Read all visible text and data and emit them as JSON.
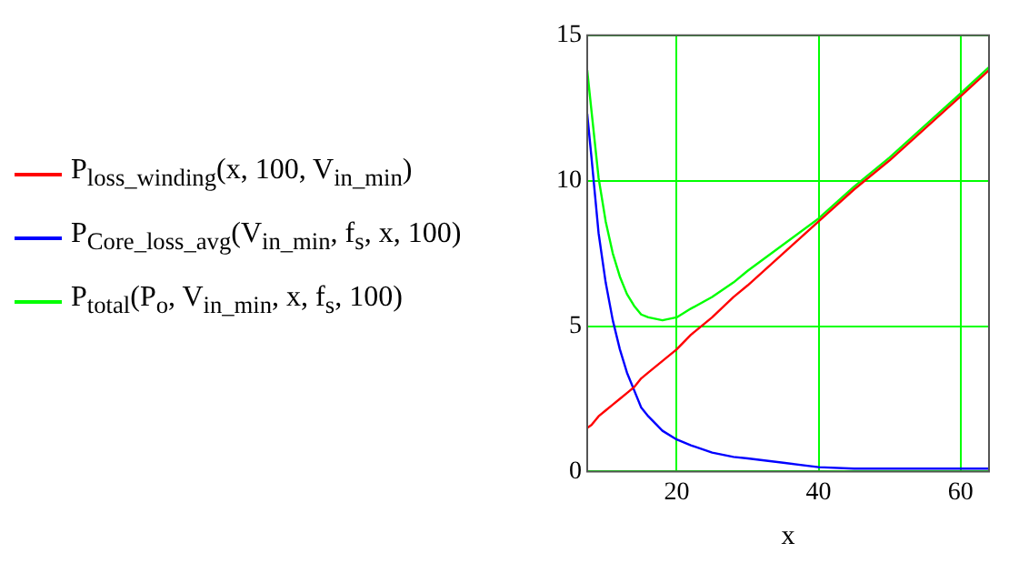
{
  "chart_data": {
    "type": "line",
    "xlabel": "x",
    "x": [
      7.4,
      8,
      9,
      10,
      11,
      12,
      13,
      14,
      15,
      16,
      18,
      20,
      22,
      25,
      28,
      30,
      35,
      40,
      45,
      50,
      55,
      60,
      64
    ],
    "series": [
      {
        "name": "P$_{loss_winding}$(x, 100, V$_{in_min}$)",
        "color": "#ff0000",
        "values": [
          1.5,
          1.6,
          1.9,
          2.1,
          2.3,
          2.5,
          2.7,
          2.9,
          3.2,
          3.4,
          3.8,
          4.2,
          4.7,
          5.3,
          6.0,
          6.4,
          7.5,
          8.6,
          9.7,
          10.7,
          11.8,
          12.9,
          13.8
        ]
      },
      {
        "name": "P$_{Core_loss_avg}$(V$_{in_min}$, f$_{s}$, x, 100)",
        "color": "#0000ff",
        "values": [
          12.3,
          10.8,
          8.2,
          6.5,
          5.2,
          4.2,
          3.4,
          2.8,
          2.2,
          1.9,
          1.4,
          1.1,
          0.9,
          0.65,
          0.5,
          0.45,
          0.3,
          0.15,
          0.1,
          0.1,
          0.1,
          0.1,
          0.1
        ]
      },
      {
        "name": "P$_{total}$(P$_{o}$, V$_{in_min}$, x, f$_{s}$, 100)",
        "color": "#00ff00",
        "values": [
          13.8,
          12.4,
          10.1,
          8.6,
          7.5,
          6.7,
          6.1,
          5.7,
          5.4,
          5.3,
          5.2,
          5.3,
          5.6,
          6.0,
          6.5,
          6.9,
          7.8,
          8.7,
          9.8,
          10.8,
          11.9,
          13.0,
          13.9
        ]
      }
    ],
    "xlim": [
      7.4,
      64
    ],
    "xticks": [
      20,
      40,
      60
    ],
    "ylim": [
      0,
      15
    ],
    "yticks": [
      0,
      5,
      10,
      15
    ],
    "grid": true,
    "legend": "left",
    "marker": "none",
    "line_style": "solid"
  }
}
